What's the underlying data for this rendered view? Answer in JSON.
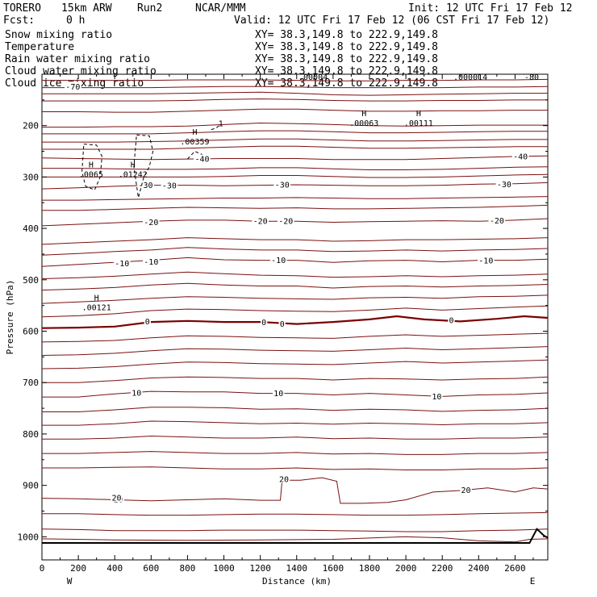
{
  "header": {
    "model": "TORERO",
    "resolution": "15km ARW",
    "run": "Run2",
    "org": "NCAR/MMM",
    "init": "Init: 12 UTC Fri 17 Feb 12",
    "fcst_label": "Fcst:",
    "fcst_value": "0 h",
    "valid": "Valid: 12 UTC Fri 17 Feb 12 (06 CST Fri 17 Feb 12)"
  },
  "fields": [
    {
      "label": "Snow mixing ratio",
      "color": "#000000",
      "xy": "XY=  38.3,149.8 to 222.9,149.8"
    },
    {
      "label": "Temperature",
      "color": "#cc0000",
      "xy": "XY=  38.3,149.8 to 222.9,149.8"
    },
    {
      "label": "Rain water mixing ratio",
      "color": "#cc0000",
      "xy": "XY=  38.3,149.8 to 222.9,149.8"
    },
    {
      "label": "Cloud water mixing ratio",
      "color": "#0000cc",
      "xy": "XY=  38.3,149.8 to 222.9,149.8"
    },
    {
      "label": "Cloud ice mixing ratio",
      "color": "#000000",
      "xy": "XY=  38.3,149.8 to 222.9,149.8"
    }
  ],
  "overlap_text": [
    ".00004",
    ".000014",
    "-80"
  ],
  "colors": {
    "temperature": "#7a1010",
    "zero_isotherm": "#7a0000",
    "terrain": "#000000"
  },
  "chart_data": {
    "type": "line",
    "xlabel": "Distance (km)",
    "ylabel": "Pressure (hPa)",
    "xlim": [
      0,
      2780
    ],
    "ylim": [
      1045,
      100
    ],
    "x_ticks": [
      "0",
      "200",
      "400",
      "600",
      "800",
      "1000",
      "1200",
      "1400",
      "1600",
      "1800",
      "2000",
      "2200",
      "2400",
      "2600"
    ],
    "y_ticks": [
      "200",
      "300",
      "400",
      "500",
      "600",
      "700",
      "800",
      "900",
      "1000"
    ],
    "x_end_labels": {
      "left": "W",
      "right": "E"
    },
    "temperature_contours": [
      {
        "level": 20,
        "label_pos": [
          [
            420,
            927
          ],
          [
            1330,
            888
          ],
          [
            2330,
            909
          ],
          [
            410,
            924
          ]
        ],
        "x": [
          0,
          200,
          400,
          600,
          800,
          1000,
          1200,
          1310,
          1320,
          1420,
          1540,
          1620,
          1640,
          1760,
          1900,
          2000,
          2150,
          2300,
          2450,
          2600,
          2700,
          2780
        ],
        "p": [
          925,
          926,
          928,
          930,
          928,
          926,
          929,
          929,
          890,
          890,
          885,
          892,
          935,
          935,
          933,
          928,
          913,
          910,
          905,
          913,
          905,
          907
        ]
      },
      {
        "level": 10,
        "label_pos": [
          [
            520,
            720
          ],
          [
            1300,
            721
          ],
          [
            2170,
            727
          ]
        ],
        "x": [
          0,
          200,
          400,
          600,
          800,
          1000,
          1200,
          1400,
          1600,
          1800,
          2000,
          2200,
          2400,
          2600,
          2780
        ],
        "p": [
          728,
          728,
          722,
          717,
          718,
          718,
          721,
          721,
          724,
          721,
          724,
          727,
          724,
          723,
          720
        ]
      },
      {
        "level": 0,
        "thick": true,
        "label_pos": [
          [
            580,
            581
          ],
          [
            1220,
            583
          ],
          [
            1320,
            586
          ],
          [
            2250,
            579
          ]
        ],
        "x": [
          0,
          200,
          400,
          600,
          800,
          1000,
          1200,
          1300,
          1400,
          1600,
          1800,
          1950,
          2100,
          2300,
          2500,
          2650,
          2780
        ],
        "p": [
          594,
          593,
          591,
          582,
          580,
          582,
          582,
          584,
          586,
          582,
          577,
          571,
          577,
          581,
          576,
          571,
          574
        ]
      },
      {
        "level": -10,
        "label_pos": [
          [
            440,
            468
          ],
          [
            600,
            465
          ],
          [
            1300,
            462
          ],
          [
            2440,
            463
          ]
        ],
        "x": [
          0,
          200,
          400,
          600,
          800,
          1000,
          1200,
          1400,
          1600,
          1800,
          2000,
          2200,
          2400,
          2600,
          2780
        ],
        "p": [
          474,
          470,
          466,
          462,
          457,
          461,
          462,
          462,
          466,
          463,
          462,
          465,
          462,
          462,
          460
        ]
      },
      {
        "level": -20,
        "label_pos": [
          [
            600,
            388
          ],
          [
            1200,
            386
          ],
          [
            1340,
            386
          ],
          [
            2500,
            385
          ]
        ],
        "x": [
          0,
          200,
          400,
          600,
          800,
          1000,
          1200,
          1400,
          1600,
          1800,
          2000,
          2200,
          2400,
          2600,
          2780
        ],
        "p": [
          395,
          392,
          389,
          386,
          384,
          384,
          386,
          386,
          388,
          387,
          386,
          385,
          386,
          384,
          381
        ]
      },
      {
        "level": -30,
        "label_pos": [
          [
            570,
            316
          ],
          [
            700,
            317
          ],
          [
            1320,
            315
          ],
          [
            2540,
            314
          ]
        ],
        "x": [
          0,
          200,
          400,
          600,
          800,
          1000,
          1200,
          1400,
          1600,
          1800,
          2000,
          2200,
          2400,
          2600,
          2780
        ],
        "p": [
          323,
          321,
          318,
          316,
          316,
          317,
          316,
          315,
          316,
          317,
          317,
          316,
          314,
          313,
          311
        ]
      },
      {
        "level": -40,
        "label_pos": [
          [
            880,
            265
          ],
          [
            2630,
            260
          ]
        ],
        "x": [
          0,
          200,
          400,
          600,
          800,
          1000,
          1200,
          1400,
          1600,
          1800,
          2000,
          2200,
          2400,
          2600,
          2780
        ],
        "p": [
          263,
          264,
          265,
          266,
          265,
          264,
          264,
          264,
          266,
          266,
          266,
          264,
          262,
          260,
          259
        ]
      },
      {
        "level": -70,
        "label_pos": [
          [
            170,
            124
          ]
        ],
        "x": [
          0,
          200,
          400,
          600,
          800,
          1000,
          1200,
          1400,
          1600,
          1800,
          2000,
          2200,
          2400,
          2600,
          2780
        ],
        "p": [
          126,
          126,
          126,
          126,
          125,
          124,
          124,
          125,
          126,
          126,
          126,
          126,
          125,
          125,
          124
        ]
      }
    ],
    "extra_isotherms_p": [
      [
        112,
        112,
        112,
        112,
        111,
        111,
        111,
        112,
        113,
        113,
        112,
        112,
        111,
        111,
        110
      ],
      [
        138,
        138,
        138,
        138,
        137,
        136,
        135,
        137,
        140,
        141,
        140,
        139,
        138,
        137,
        137
      ],
      [
        152,
        152,
        152,
        152,
        151,
        149,
        148,
        149,
        151,
        152,
        152,
        151,
        151,
        150,
        150
      ],
      [
        173,
        173,
        174,
        174,
        172,
        170,
        168,
        168,
        170,
        172,
        172,
        171,
        171,
        170,
        170
      ],
      [
        203,
        203,
        202,
        202,
        201,
        198,
        195,
        196,
        198,
        200,
        201,
        200,
        199,
        199,
        199
      ],
      [
        216,
        216,
        216,
        216,
        214,
        212,
        210,
        210,
        212,
        214,
        214,
        213,
        212,
        211,
        211
      ],
      [
        232,
        232,
        232,
        231,
        230,
        228,
        226,
        226,
        228,
        230,
        230,
        229,
        228,
        227,
        227
      ],
      [
        246,
        246,
        246,
        246,
        244,
        242,
        240,
        240,
        242,
        244,
        244,
        243,
        242,
        241,
        241
      ],
      [
        283,
        283,
        284,
        285,
        285,
        284,
        282,
        282,
        284,
        286,
        286,
        285,
        283,
        281,
        280
      ],
      [
        300,
        300,
        300,
        300,
        300,
        299,
        297,
        297,
        299,
        301,
        301,
        300,
        298,
        296,
        295
      ],
      [
        345,
        345,
        344,
        343,
        342,
        341,
        341,
        340,
        341,
        342,
        342,
        341,
        340,
        339,
        338
      ],
      [
        365,
        365,
        363,
        361,
        359,
        360,
        361,
        360,
        362,
        362,
        361,
        360,
        359,
        357,
        355
      ],
      [
        431,
        428,
        425,
        422,
        418,
        420,
        422,
        422,
        425,
        424,
        422,
        422,
        421,
        420,
        418
      ],
      [
        452,
        449,
        445,
        442,
        437,
        440,
        442,
        442,
        445,
        444,
        442,
        444,
        442,
        441,
        439
      ],
      [
        498,
        496,
        493,
        489,
        485,
        488,
        491,
        492,
        495,
        494,
        492,
        494,
        492,
        491,
        489
      ],
      [
        520,
        518,
        515,
        510,
        507,
        510,
        512,
        512,
        516,
        513,
        512,
        514,
        512,
        511,
        509
      ],
      [
        546,
        543,
        540,
        536,
        533,
        534,
        536,
        537,
        538,
        535,
        534,
        536,
        533,
        532,
        530
      ],
      [
        572,
        570,
        566,
        560,
        557,
        558,
        560,
        561,
        562,
        559,
        555,
        559,
        556,
        553,
        551
      ],
      [
        621,
        620,
        618,
        613,
        609,
        610,
        612,
        613,
        614,
        610,
        607,
        610,
        608,
        606,
        604
      ],
      [
        647,
        646,
        643,
        638,
        634,
        635,
        637,
        638,
        639,
        636,
        633,
        636,
        634,
        632,
        630
      ],
      [
        673,
        672,
        669,
        664,
        660,
        661,
        663,
        664,
        665,
        662,
        659,
        662,
        660,
        658,
        656
      ],
      [
        700,
        700,
        696,
        691,
        689,
        690,
        692,
        692,
        695,
        692,
        693,
        695,
        693,
        692,
        689
      ],
      [
        757,
        757,
        753,
        748,
        748,
        749,
        752,
        751,
        754,
        752,
        753,
        756,
        754,
        753,
        750
      ],
      [
        783,
        783,
        780,
        775,
        776,
        778,
        780,
        779,
        781,
        779,
        780,
        782,
        780,
        780,
        778
      ],
      [
        810,
        810,
        808,
        804,
        806,
        808,
        808,
        806,
        809,
        808,
        810,
        810,
        808,
        808,
        806
      ],
      [
        838,
        838,
        836,
        834,
        836,
        838,
        838,
        836,
        839,
        838,
        840,
        840,
        838,
        838,
        836
      ],
      [
        866,
        866,
        865,
        864,
        866,
        868,
        868,
        866,
        869,
        868,
        870,
        870,
        868,
        868,
        866
      ],
      [
        955,
        955,
        957,
        958,
        958,
        957,
        956,
        956,
        957,
        958,
        958,
        957,
        955,
        954,
        953
      ],
      [
        985,
        986,
        988,
        988,
        988,
        987,
        987,
        987,
        988,
        989,
        990,
        990,
        988,
        987,
        985
      ]
    ],
    "extra_isotherm_x": [
      0,
      200,
      400,
      600,
      800,
      1000,
      1200,
      1400,
      1600,
      1800,
      2000,
      2200,
      2400,
      2600,
      2780
    ],
    "lowest_isotherm": {
      "x": [
        0,
        400,
        800,
        1200,
        1600,
        2000,
        2200,
        2400,
        2600,
        2680,
        2780
      ],
      "p": [
        1004,
        1006,
        1007,
        1006,
        1005,
        1000,
        1002,
        1008,
        1010,
        1005,
        1004
      ]
    },
    "terrain": {
      "x": [
        0,
        2400,
        2640,
        2680,
        2720,
        2760,
        2780
      ],
      "p": [
        1012,
        1012,
        1012,
        1012,
        985,
        998,
        1002
      ]
    },
    "hydrometeor_maxima": [
      {
        "label": "H",
        "value": ".0065",
        "x": 270,
        "p": 291
      },
      {
        "label": "H",
        "value": ".01242",
        "x": 500,
        "p": 291
      },
      {
        "label": "H",
        "value": ".00359",
        "x": 840,
        "p": 227
      },
      {
        "label": "H",
        "value": ".00063",
        "x": 1770,
        "p": 191
      },
      {
        "label": "H",
        "value": ".00111",
        "x": 2070,
        "p": 191
      },
      {
        "label": "H",
        "value": ".00121",
        "x": 300,
        "p": 550
      }
    ],
    "cloud_ice_loops": [
      {
        "x": [
          230,
          300,
          330,
          320,
          290,
          240,
          220,
          230
        ],
        "p": [
          236,
          238,
          260,
          300,
          325,
          318,
          290,
          236
        ]
      },
      {
        "x": [
          520,
          590,
          610,
          590,
          560,
          530,
          505,
          520
        ],
        "p": [
          218,
          220,
          250,
          280,
          300,
          340,
          280,
          218
        ]
      },
      {
        "x": [
          800,
          840,
          880
        ],
        "p": [
          265,
          250,
          256
        ]
      },
      {
        "x": [
          930,
          960,
          980
        ],
        "p": [
          208,
          204,
          198
        ]
      }
    ],
    "cloud_ice_marks": [
      {
        "text": "1",
        "x": 970,
        "p": 201
      }
    ]
  }
}
